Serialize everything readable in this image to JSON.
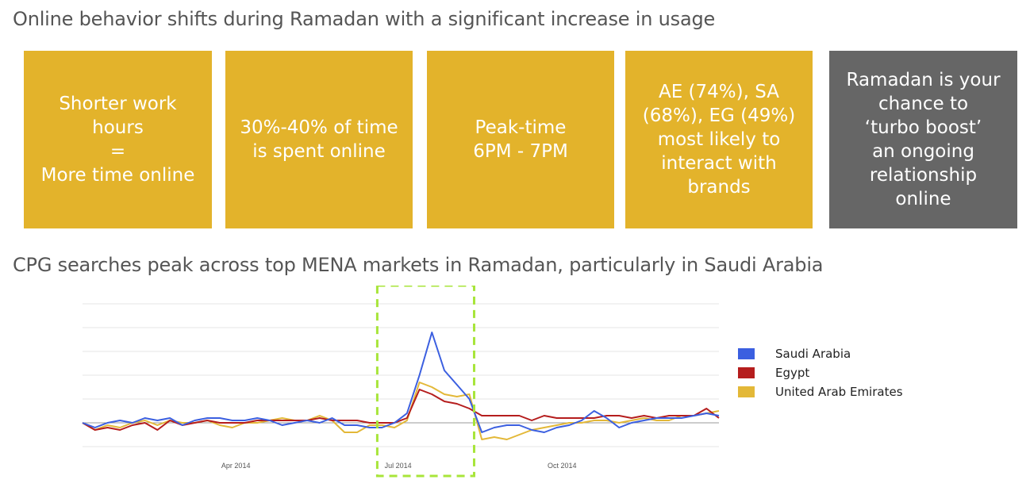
{
  "heading1": "Online behavior shifts during Ramadan with a significant increase in usage",
  "cards": [
    {
      "text": "Shorter work\nhours\n=\nMore time online",
      "color": "#e3b32b"
    },
    {
      "text": "30%-40% of time\nis spent online",
      "color": "#e3b32b"
    },
    {
      "text": "Peak-time\n6PM - 7PM",
      "color": "#e3b32b"
    },
    {
      "text": "AE (74%), SA\n(68%), EG (49%)\nmost likely to\ninteract with\nbrands",
      "color": "#e3b32b"
    },
    {
      "text": "Ramadan is your\nchance to\n‘turbo boost’\nan ongoing\nrelationship\nonline",
      "color": "#666666"
    }
  ],
  "heading2": "CPG searches peak across top MENA markets in Ramadan, particularly in Saudi Arabia",
  "chart_data": {
    "type": "line",
    "x": [
      "2014-01-05",
      "2014-01-12",
      "2014-01-19",
      "2014-01-26",
      "2014-02-02",
      "2014-02-09",
      "2014-02-16",
      "2014-02-23",
      "2014-03-02",
      "2014-03-09",
      "2014-03-16",
      "2014-03-23",
      "2014-03-30",
      "2014-04-06",
      "2014-04-13",
      "2014-04-20",
      "2014-04-27",
      "2014-05-04",
      "2014-05-11",
      "2014-05-18",
      "2014-05-25",
      "2014-06-01",
      "2014-06-08",
      "2014-06-15",
      "2014-06-22",
      "2014-06-29",
      "2014-07-06",
      "2014-07-13",
      "2014-07-20",
      "2014-07-27",
      "2014-08-03",
      "2014-08-10",
      "2014-08-17",
      "2014-08-24",
      "2014-08-31",
      "2014-09-07",
      "2014-09-14",
      "2014-09-21",
      "2014-09-28",
      "2014-10-05",
      "2014-10-12",
      "2014-10-19",
      "2014-10-26",
      "2014-11-02",
      "2014-11-09",
      "2014-11-16",
      "2014-11-23",
      "2014-11-30",
      "2014-12-07",
      "2014-12-14",
      "2014-12-21",
      "2014-12-28"
    ],
    "x_ticks": [
      "Apr 2014",
      "Jul 2014",
      "Oct 2014"
    ],
    "x_tick_dates": [
      "2014-04-01",
      "2014-07-01",
      "2014-10-01"
    ],
    "series": [
      {
        "name": "Saudi Arabia",
        "color": "#3b5fe0",
        "values": [
          0,
          -2,
          0,
          1,
          0,
          2,
          1,
          2,
          -1,
          1,
          2,
          2,
          1,
          1,
          2,
          1,
          -1,
          0,
          1,
          0,
          2,
          -1,
          -1,
          -2,
          -2,
          0,
          4,
          20,
          38,
          22,
          16,
          10,
          -4,
          -2,
          -1,
          -1,
          -3,
          -4,
          -2,
          -1,
          1,
          5,
          2,
          -2,
          0,
          1,
          2,
          2,
          2,
          3,
          4,
          3
        ]
      },
      {
        "name": "Egypt",
        "color": "#b51d1d",
        "values": [
          0,
          -3,
          -2,
          -3,
          -1,
          0,
          -3,
          1,
          -1,
          0,
          1,
          0,
          0,
          0,
          1,
          1,
          1,
          1,
          1,
          2,
          1,
          1,
          1,
          0,
          0,
          0,
          2,
          14,
          12,
          9,
          8,
          6,
          3,
          3,
          3,
          3,
          1,
          3,
          2,
          2,
          2,
          2,
          3,
          3,
          2,
          3,
          2,
          3,
          3,
          3,
          6,
          2
        ]
      },
      {
        "name": "United Arab Emirates",
        "color": "#e3b838",
        "values": [
          0,
          -3,
          -1,
          -2,
          0,
          1,
          -1,
          1,
          0,
          0,
          1,
          -1,
          -2,
          0,
          0,
          1,
          2,
          1,
          1,
          3,
          1,
          -4,
          -4,
          -1,
          -1,
          -2,
          1,
          17,
          15,
          12,
          11,
          12,
          -7,
          -6,
          -7,
          -5,
          -3,
          -2,
          -1,
          0,
          0,
          1,
          1,
          0,
          1,
          2,
          1,
          1,
          3,
          3,
          4,
          5
        ]
      }
    ],
    "ylim": [
      -14,
      50
    ],
    "grid": true,
    "legend_position": "right",
    "highlight": {
      "start": "2014-06-22",
      "end": "2014-08-10",
      "color": "#a8e53a"
    }
  }
}
